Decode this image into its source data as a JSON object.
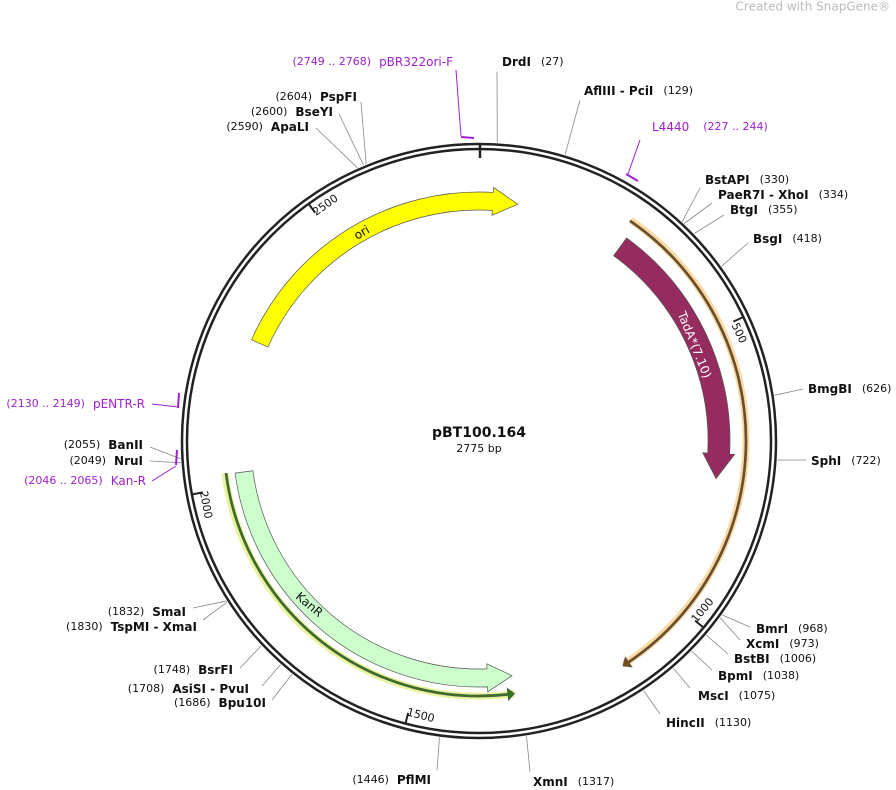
{
  "watermark": "Created with SnapGene®",
  "plasmid": {
    "name": "pBT100.164",
    "length": "2775 bp"
  },
  "ticks": [
    500,
    1000,
    1500,
    2000,
    2500
  ],
  "features": [
    {
      "name": "ori"
    },
    {
      "name": "TadA*(7.10)"
    },
    {
      "name": "KanR"
    }
  ],
  "enzymes": [
    {
      "name": "DrdI",
      "pos": "(27)"
    },
    {
      "name": "AflIII - PciI",
      "pos": "(129)"
    },
    {
      "name": "BstAPI",
      "pos": "(330)"
    },
    {
      "name": "PaeR7I - XhoI",
      "pos": "(334)"
    },
    {
      "name": "BtgI",
      "pos": "(355)"
    },
    {
      "name": "BsgI",
      "pos": "(418)"
    },
    {
      "name": "BmgBI",
      "pos": "(626)"
    },
    {
      "name": "SphI",
      "pos": "(722)"
    },
    {
      "name": "BmrI",
      "pos": "(968)"
    },
    {
      "name": "XcmI",
      "pos": "(973)"
    },
    {
      "name": "BstBI",
      "pos": "(1006)"
    },
    {
      "name": "BpmI",
      "pos": "(1038)"
    },
    {
      "name": "MscI",
      "pos": "(1075)"
    },
    {
      "name": "HincII",
      "pos": "(1130)"
    },
    {
      "name": "XmnI",
      "pos": "(1317)"
    },
    {
      "name": "PflMI",
      "pos": "(1446)"
    },
    {
      "name": "Bpu10I",
      "pos": "(1686)"
    },
    {
      "name": "AsiSI - PvuI",
      "pos": "(1708)"
    },
    {
      "name": "BsrFI",
      "pos": "(1748)"
    },
    {
      "name": "TspMI - XmaI",
      "pos": "(1830)"
    },
    {
      "name": "SmaI",
      "pos": "(1832)"
    },
    {
      "name": "NruI",
      "pos": "(2049)"
    },
    {
      "name": "BanII",
      "pos": "(2055)"
    },
    {
      "name": "ApaLI",
      "pos": "(2590)"
    },
    {
      "name": "BseYI",
      "pos": "(2600)"
    },
    {
      "name": "PspFI",
      "pos": "(2604)"
    }
  ],
  "primers": [
    {
      "name": "pBR322ori-F",
      "range": "(2749 .. 2768)"
    },
    {
      "name": "L4440",
      "range": "(227 .. 244)"
    },
    {
      "name": "pENTR-R",
      "range": "(2130 .. 2149)"
    },
    {
      "name": "Kan-R",
      "range": "(2046 .. 2065)"
    }
  ]
}
